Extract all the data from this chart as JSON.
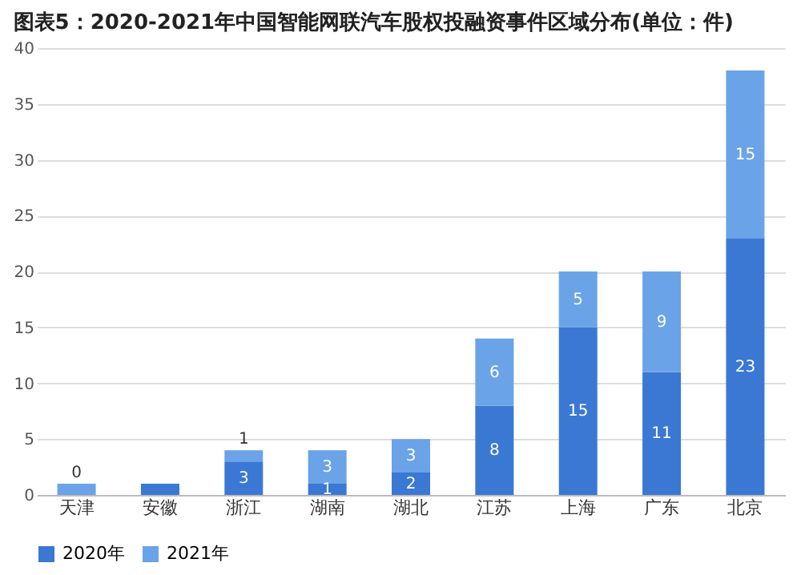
{
  "chart_data": {
    "type": "bar",
    "title": "图表5：2020-2021年中国智能网联汽车股权投融资事件区域分布(单位：件)",
    "categories": [
      "天津",
      "安徽",
      "浙江",
      "湖南",
      "湖北",
      "江苏",
      "上海",
      "广东",
      "北京"
    ],
    "stacked": true,
    "series": [
      {
        "name": "2020年",
        "color": "#3a78d4",
        "values": [
          0,
          1,
          3,
          1,
          2,
          8,
          15,
          11,
          23
        ],
        "value_labels": [
          "0",
          null,
          "3",
          "1",
          "2",
          "8",
          "15",
          "11",
          "23"
        ]
      },
      {
        "name": "2021年",
        "color": "#6ba3e8",
        "values": [
          1,
          0,
          1,
          3,
          3,
          6,
          5,
          9,
          15
        ],
        "value_labels": [
          null,
          null,
          "1",
          "3",
          "3",
          "6",
          "5",
          "9",
          "15"
        ]
      }
    ],
    "ylim": [
      0,
      40
    ],
    "yticks": [
      0,
      5,
      10,
      15,
      20,
      25,
      30,
      35,
      40
    ],
    "grid": "y",
    "legend": "bottom"
  }
}
